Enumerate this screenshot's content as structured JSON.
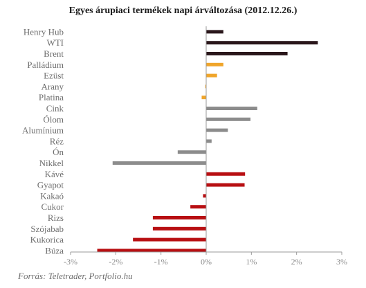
{
  "chart_data": {
    "type": "bar",
    "orientation": "horizontal",
    "title": "Egyes árupiaci termékek napi árváltozása (2012.12.26.)",
    "source": "Forrás: Teletrader, Portfolio.hu",
    "categories": [
      "Henry Hub",
      "WTI",
      "Brent",
      "Palládium",
      "Ezüst",
      "Arany",
      "Platina",
      "Cink",
      "Ólom",
      "Alumínium",
      "Réz",
      "Ón",
      "Nikkel",
      "Kávé",
      "Gyapot",
      "Kakaó",
      "Cukor",
      "Rizs",
      "Szójabab",
      "Kukorica",
      "Búza"
    ],
    "values": [
      0.38,
      2.47,
      1.8,
      0.38,
      0.24,
      -0.02,
      -0.1,
      1.13,
      0.98,
      0.48,
      0.12,
      -0.63,
      -2.07,
      0.86,
      0.85,
      -0.07,
      -0.35,
      -1.18,
      -1.18,
      -1.62,
      -2.41
    ],
    "groups": [
      "energy",
      "energy",
      "energy",
      "precious",
      "precious",
      "precious",
      "precious",
      "industrial",
      "industrial",
      "industrial",
      "industrial",
      "industrial",
      "industrial",
      "agri",
      "agri",
      "agri",
      "agri",
      "agri",
      "agri",
      "agri",
      "agri"
    ],
    "colors": {
      "energy": "#2a171b",
      "precious": "#f0a52a",
      "industrial": "#8c8c8c",
      "agri": "#b80f12"
    },
    "xlim": [
      -3,
      3
    ],
    "xticks": [
      "-3%",
      "-2%",
      "-1%",
      "0%",
      "1%",
      "2%",
      "3%"
    ],
    "tick_values": [
      -3,
      -2,
      -1,
      0,
      1,
      2,
      3
    ],
    "grid": false,
    "legend": "none"
  }
}
